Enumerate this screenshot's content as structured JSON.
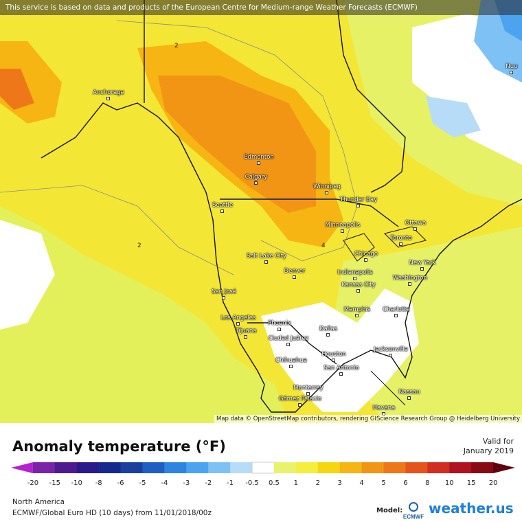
{
  "map": {
    "banner": "This service is based on data and products of the European Centre for Medium-range Weather Forecasts (ECMWF)",
    "attribution": "Map data © OpenStreetMap contributors, rendering GIScience Research Group @ Heidelberg University",
    "cities": [
      "Anchorage",
      "Edmonton",
      "Calgary",
      "Winnipeg",
      "Thunder Bay",
      "Seattle",
      "Minneapolis",
      "Ottawa",
      "Toronto",
      "Salt Lake City",
      "Chicago",
      "Denver",
      "New York",
      "Indianapolis",
      "Washington",
      "Kansas City",
      "San José",
      "Memphis",
      "Charlotte",
      "Los Angeles",
      "Phoenix",
      "Dallas",
      "Tijuana",
      "Ciudad Juárez",
      "Jacksonville",
      "Houston",
      "Chihuahua",
      "San Antonio",
      "Monterrey",
      "Nassau",
      "Gómez Palacio",
      "Havana",
      "Nuu"
    ],
    "contour_labels": [
      "2",
      "2",
      "4"
    ]
  },
  "legend": {
    "title": "Anomaly temperature (°F)",
    "valid_line1": "Valid for",
    "valid_line2": "January 2019",
    "ticks": [
      "-20",
      "-15",
      "-10",
      "-8",
      "-6",
      "-5",
      "-4",
      "-3",
      "-2",
      "-1",
      "-0.5",
      "0.5",
      "1",
      "2",
      "3",
      "4",
      "5",
      "6",
      "8",
      "10",
      "15",
      "20"
    ],
    "colors": [
      "#b51fd1",
      "#7a22a8",
      "#4e1a90",
      "#2b1a8a",
      "#16288f",
      "#1c3f9e",
      "#1f5fc4",
      "#2d84e3",
      "#4ca3f0",
      "#7ec1f5",
      "#b7dcf8",
      "#ffffff",
      "#e9f26b",
      "#f3ef3c",
      "#f6d60f",
      "#f6b512",
      "#f29515",
      "#ee7819",
      "#e5541b",
      "#d22e1f",
      "#b2121e",
      "#8a0a14",
      "#5e0410"
    ]
  },
  "footer": {
    "region": "North America",
    "model_line": "ECMWF/Global Euro HD (10 days) from 11/01/2018/00z",
    "model_label": "Model:",
    "ecmwf_text": "ECMWF",
    "brand": "weather.us"
  }
}
